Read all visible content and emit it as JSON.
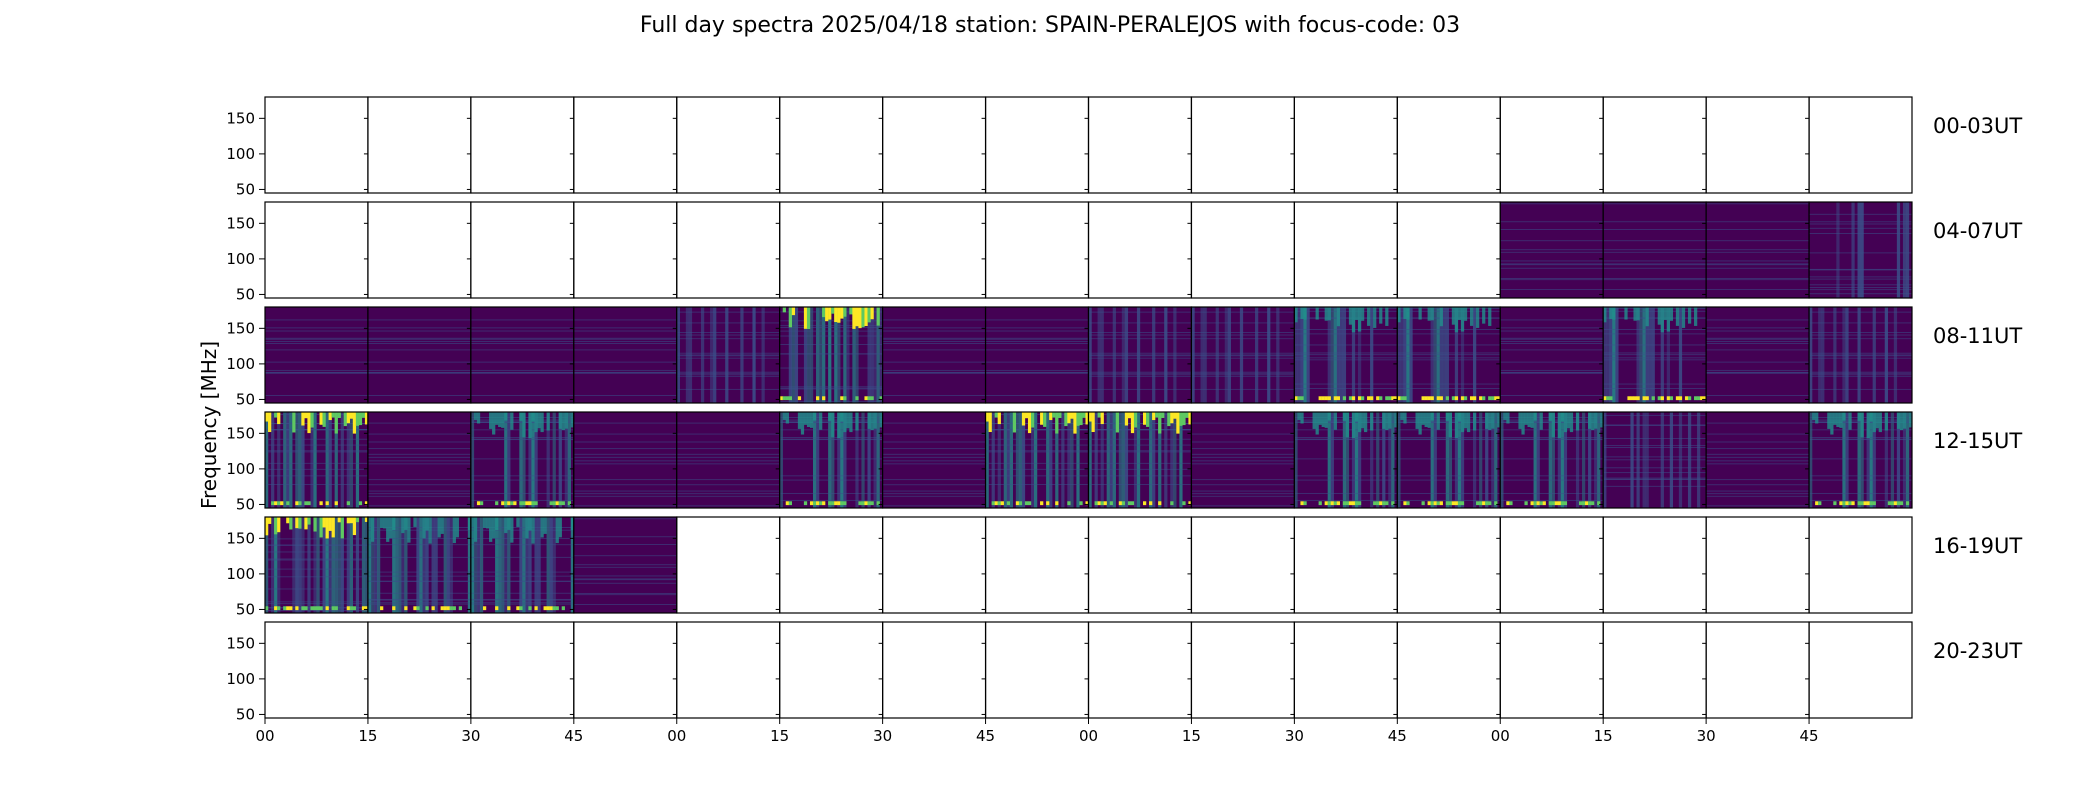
{
  "chart_data": {
    "type": "heatmap",
    "title": "Full day spectra 2025/04/18 station: SPAIN-PERALEJOS with focus-code: 03",
    "ylabel": "Frequency [MHz]",
    "xlabel": "",
    "ylim": [
      45,
      180
    ],
    "yticks": [
      50,
      100,
      150
    ],
    "xtick_labels": [
      "00",
      "15",
      "30",
      "45",
      "00",
      "15",
      "30",
      "45",
      "00",
      "15",
      "30",
      "45",
      "00",
      "15",
      "30",
      "45"
    ],
    "colormap": [
      "#440154",
      "#3b528b",
      "#21918c",
      "#5ec962",
      "#fde725"
    ],
    "row_labels": [
      "00-03UT",
      "04-07UT",
      "08-11UT",
      "12-15UT",
      "16-19UT",
      "20-23UT"
    ],
    "panel_intensity_note": "0 = no data (blank panel); 1-5 = approximate overall activity level",
    "panels": [
      [
        0,
        0,
        0,
        0,
        0,
        0,
        0,
        0,
        0,
        0,
        0,
        0,
        0,
        0,
        0,
        0
      ],
      [
        0,
        0,
        0,
        0,
        0,
        0,
        0,
        0,
        0,
        0,
        0,
        0,
        1,
        1,
        1,
        2
      ],
      [
        1,
        1,
        1,
        1,
        2,
        4,
        1,
        1,
        2,
        2,
        3,
        3,
        1,
        3,
        1,
        2
      ],
      [
        4,
        1,
        3,
        1,
        1,
        3,
        1,
        4,
        4,
        1,
        3,
        3,
        3,
        2,
        1,
        3
      ],
      [
        4,
        3,
        3,
        1,
        0,
        0,
        0,
        0,
        0,
        0,
        0,
        0,
        0,
        0,
        0,
        0
      ],
      [
        0,
        0,
        0,
        0,
        0,
        0,
        0,
        0,
        0,
        0,
        0,
        0,
        0,
        0,
        0,
        0
      ]
    ]
  }
}
